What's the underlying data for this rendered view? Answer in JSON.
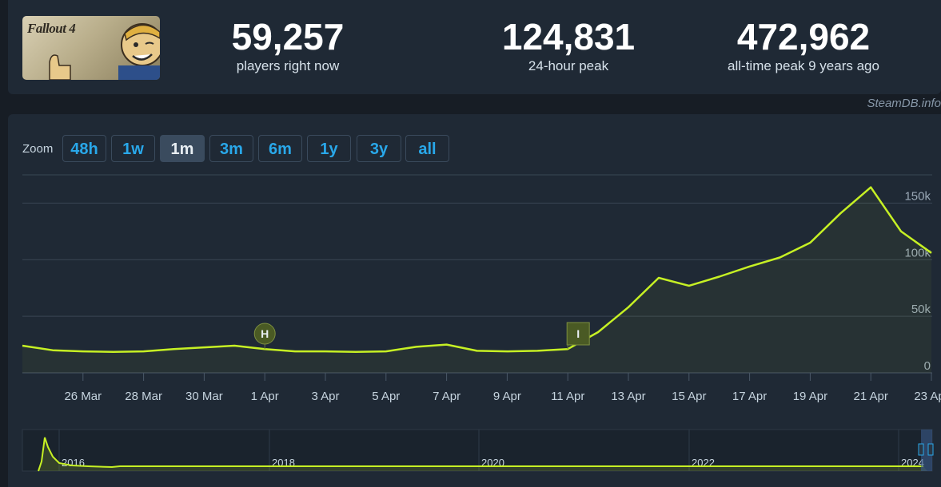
{
  "game": {
    "logo_text": "Fallout 4"
  },
  "stats": {
    "current": {
      "value": "59,257",
      "label": "players right now"
    },
    "peak24": {
      "value": "124,831",
      "label": "24-hour peak"
    },
    "alltime": {
      "value": "472,962",
      "label": "all-time peak 9 years ago"
    }
  },
  "brand": "SteamDB.info",
  "zoom": {
    "label": "Zoom",
    "buttons": [
      "48h",
      "1w",
      "1m",
      "3m",
      "6m",
      "1y",
      "3y",
      "all"
    ],
    "active": "1m"
  },
  "colors": {
    "line": "#c6f024",
    "accent": "#29a8ea",
    "marker": "#4a5a24"
  },
  "chart_data": {
    "type": "line",
    "xlabel": "",
    "ylabel": "",
    "ylim": [
      0,
      175000
    ],
    "yticks": [
      "0",
      "50k",
      "100k",
      "150k"
    ],
    "xticks": [
      "26 Mar",
      "28 Mar",
      "30 Mar",
      "1 Apr",
      "3 Apr",
      "5 Apr",
      "7 Apr",
      "9 Apr",
      "11 Apr",
      "13 Apr",
      "15 Apr",
      "17 Apr",
      "19 Apr",
      "21 Apr",
      "23 Apr"
    ],
    "grid": true,
    "series": [
      {
        "points": [
          [
            "24 Mar",
            24000
          ],
          [
            "25 Mar",
            20000
          ],
          [
            "26 Mar",
            19000
          ],
          [
            "27 Mar",
            18500
          ],
          [
            "28 Mar",
            19000
          ],
          [
            "29 Mar",
            21000
          ],
          [
            "30 Mar",
            22500
          ],
          [
            "31 Mar",
            24000
          ],
          [
            "1 Apr",
            21000
          ],
          [
            "2 Apr",
            19000
          ],
          [
            "3 Apr",
            19000
          ],
          [
            "4 Apr",
            18500
          ],
          [
            "5 Apr",
            19000
          ],
          [
            "6 Apr",
            23000
          ],
          [
            "7 Apr",
            25000
          ],
          [
            "8 Apr",
            19500
          ],
          [
            "9 Apr",
            19000
          ],
          [
            "10 Apr",
            19500
          ],
          [
            "11 Apr",
            21000
          ],
          [
            "12 Apr",
            36000
          ],
          [
            "13 Apr",
            58000
          ],
          [
            "14 Apr",
            84000
          ],
          [
            "15 Apr",
            77000
          ],
          [
            "16 Apr",
            85000
          ],
          [
            "17 Apr",
            94000
          ],
          [
            "18 Apr",
            102000
          ],
          [
            "19 Apr",
            115000
          ],
          [
            "20 Apr",
            141000
          ],
          [
            "21 Apr",
            164000
          ],
          [
            "22 Apr",
            125000
          ],
          [
            "23 Apr",
            106000
          ]
        ]
      }
    ],
    "annotations": [
      {
        "x": "1 Apr",
        "label": "H",
        "shape": "circle"
      },
      {
        "x": "11 Apr",
        "label": "I",
        "shape": "square"
      }
    ],
    "navigator": {
      "xticks": [
        "2016",
        "2018",
        "2020",
        "2022",
        "2024"
      ]
    }
  }
}
